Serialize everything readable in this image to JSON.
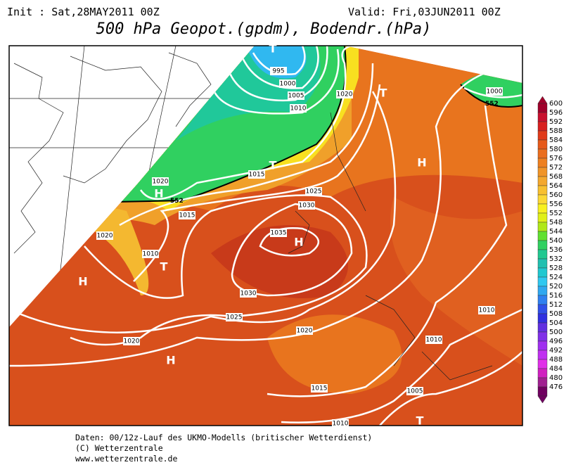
{
  "header": {
    "init": "Init : Sat,28MAY2011 00Z",
    "valid": "Valid: Fri,03JUN2011 00Z",
    "title": "500 hPa Geopot.(gpdm), Bodendr.(hPa)"
  },
  "footer": [
    "Daten: 00/12z-Lauf des UKMO-Modells (britischer Wetterdienst)",
    "(C) Wetterzentrale",
    "www.wetterzentrale.de"
  ],
  "colorbar": {
    "levels": [
      600,
      596,
      592,
      588,
      584,
      580,
      576,
      572,
      568,
      564,
      560,
      556,
      552,
      548,
      544,
      540,
      536,
      532,
      528,
      524,
      520,
      516,
      512,
      508,
      504,
      500,
      496,
      492,
      488,
      484,
      480,
      476
    ],
    "colors": [
      "#a0002a",
      "#c8102e",
      "#d82020",
      "#e03a1a",
      "#e65a1a",
      "#ea6e1e",
      "#ee8020",
      "#f09428",
      "#f4a82e",
      "#f8c030",
      "#fcd835",
      "#f8f020",
      "#e0f018",
      "#b0e818",
      "#60e030",
      "#30d060",
      "#20c890",
      "#20c0b0",
      "#20c8d0",
      "#30c8f0",
      "#30a8f0",
      "#3080f0",
      "#3050e8",
      "#3030e0",
      "#6030e0",
      "#8030e8",
      "#a030f0",
      "#c030f0",
      "#e030e8",
      "#d020c0",
      "#a02090",
      "#700060"
    ]
  },
  "isobar_labels": [
    "995",
    "1000",
    "1005",
    "1010",
    "1020",
    "1015",
    "1020",
    "1015",
    "1025",
    "1030",
    "1035",
    "1020",
    "1010",
    "1030",
    "1025",
    "1020",
    "1020",
    "1015",
    "1010",
    "1010",
    "1010",
    "1005",
    "1000"
  ],
  "contour_labels": [
    "552",
    "552"
  ],
  "pressure_centers": [
    "T",
    "T",
    "T",
    "H",
    "H",
    "H",
    "T",
    "H",
    "H",
    "T"
  ]
}
